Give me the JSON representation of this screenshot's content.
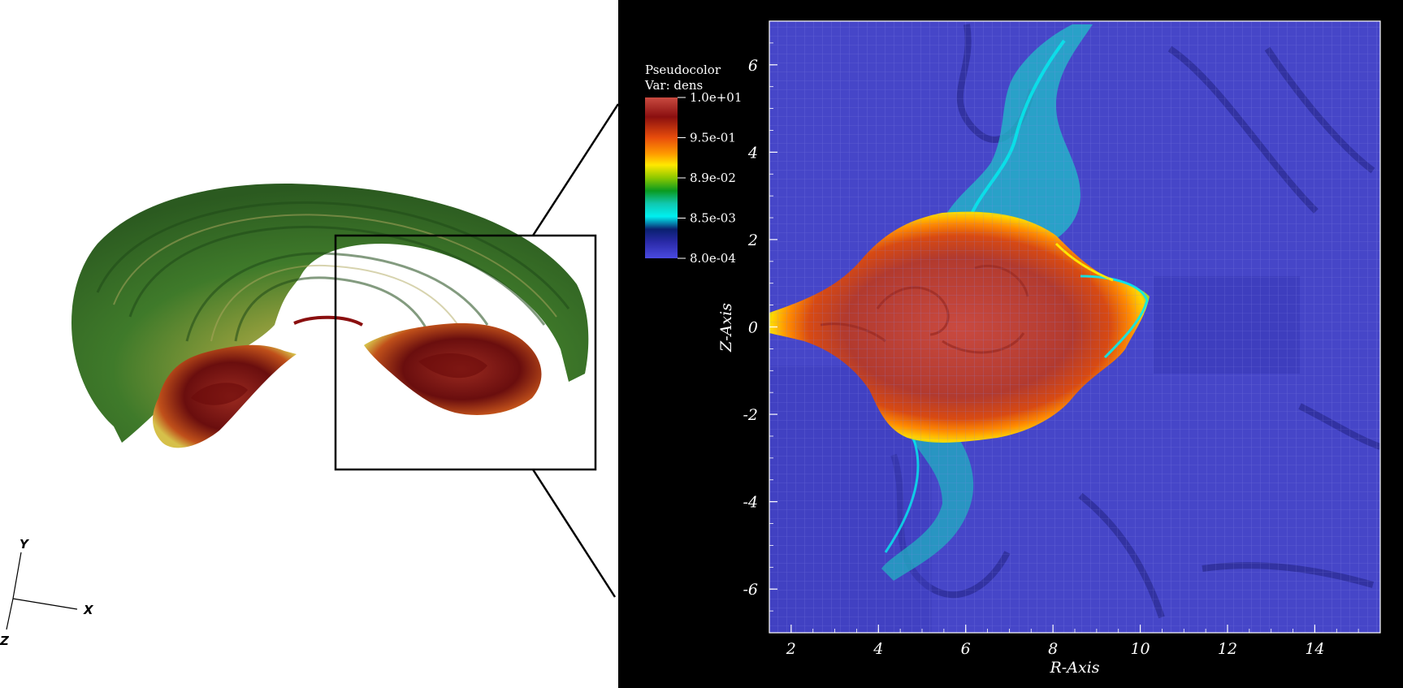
{
  "legend": {
    "title": "Pseudocolor",
    "variable": "Var: dens",
    "labels": [
      "1.0e+01",
      "9.5e-01",
      "8.9e-02",
      "8.5e-03",
      "8.0e-04"
    ],
    "colors": [
      "#c94a40",
      "#8a0f0f",
      "#e84d0c",
      "#ff9a00",
      "#ffe800",
      "#8cc800",
      "#0a9a20",
      "#10c8b0",
      "#00f0f0",
      "#0a2070",
      "#2a2aa8",
      "#4a4ae0"
    ]
  },
  "axes": {
    "x_title": "R-Axis",
    "y_title": "Z-Axis",
    "x_ticks": [
      "2",
      "4",
      "6",
      "8",
      "10",
      "12",
      "14"
    ],
    "y_ticks": [
      "6",
      "4",
      "2",
      "0",
      "-2",
      "-4",
      "-6"
    ],
    "x_range": [
      1.5,
      15.5
    ],
    "y_range": [
      -7,
      7
    ]
  },
  "triad": {
    "x": "X",
    "y": "Y",
    "z": "Z"
  }
}
